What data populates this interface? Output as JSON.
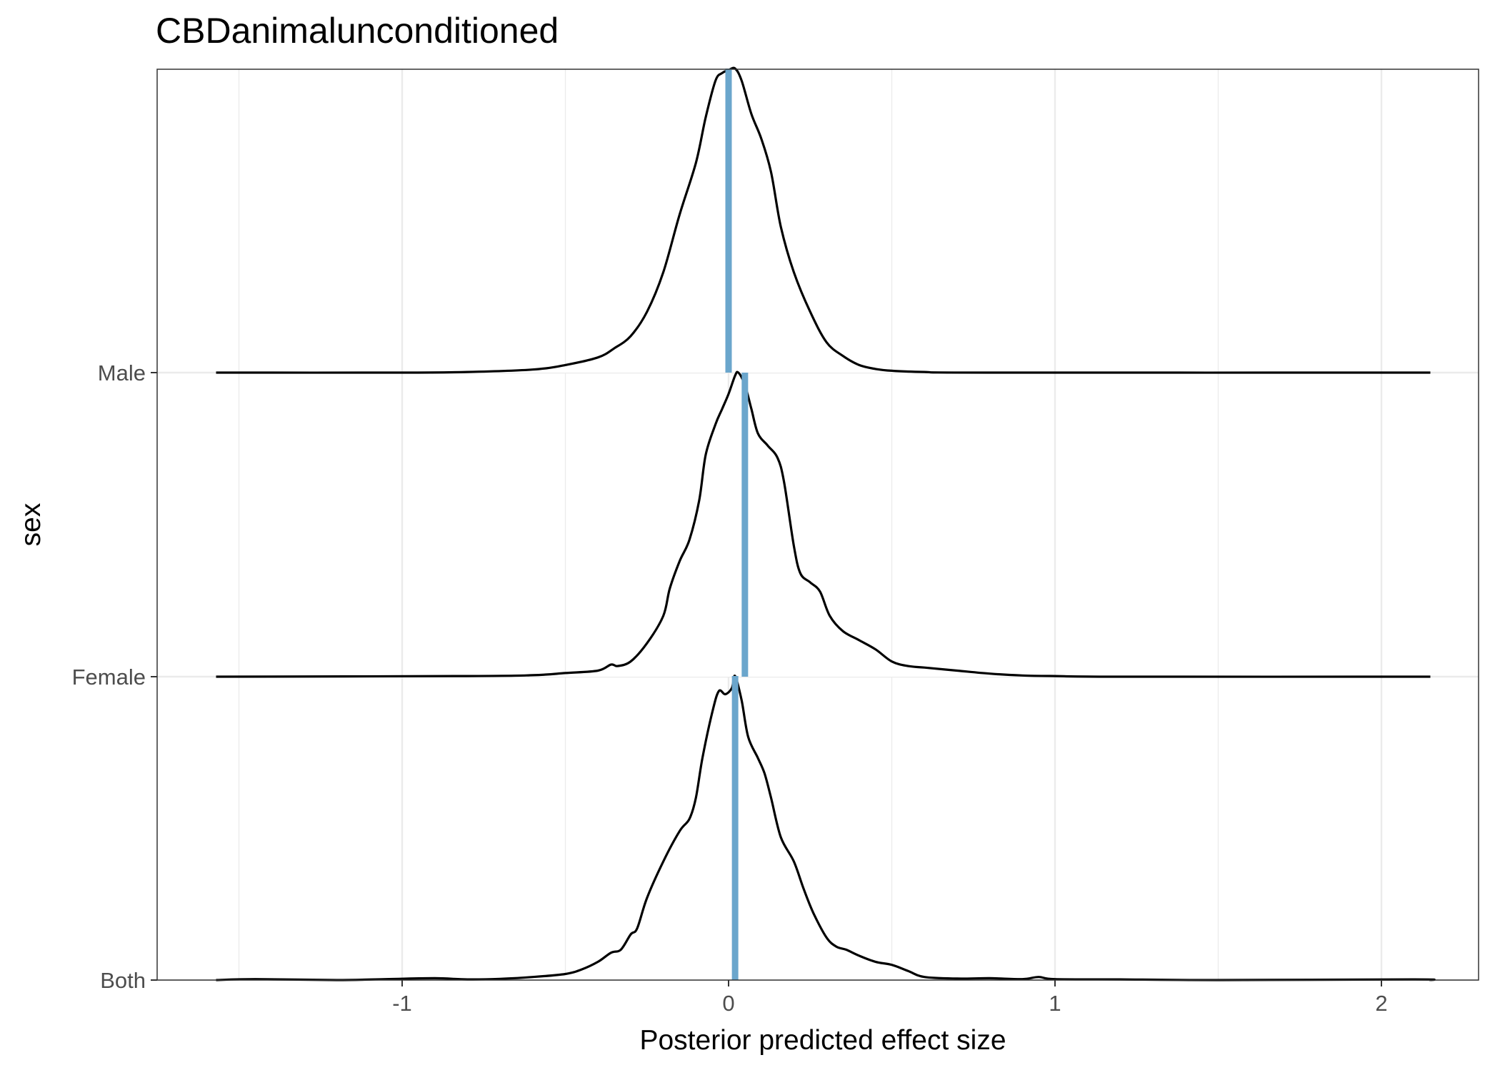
{
  "chart_data": {
    "type": "ridgeline-density",
    "title": "CBDanimalunconditioned",
    "xlabel": "Posterior predicted effect size",
    "ylabel": "sex",
    "xlim": [
      -1.75,
      2.3
    ],
    "x_ticks": [
      -1,
      0,
      1,
      2
    ],
    "x_tick_labels": [
      "-1",
      "0",
      "1",
      "2"
    ],
    "categories": [
      "Both",
      "Female",
      "Male"
    ],
    "grid": true,
    "density_range": [
      -1.57,
      2.15
    ],
    "series": [
      {
        "name": "Male",
        "mean_line": 0.0,
        "density": [
          [
            -1.57,
            0.0
          ],
          [
            -1.0,
            0.0
          ],
          [
            -0.8,
            0.002
          ],
          [
            -0.6,
            0.01
          ],
          [
            -0.5,
            0.025
          ],
          [
            -0.4,
            0.05
          ],
          [
            -0.35,
            0.08
          ],
          [
            -0.3,
            0.12
          ],
          [
            -0.25,
            0.2
          ],
          [
            -0.2,
            0.33
          ],
          [
            -0.15,
            0.52
          ],
          [
            -0.1,
            0.69
          ],
          [
            -0.07,
            0.84
          ],
          [
            -0.04,
            0.96
          ],
          [
            -0.02,
            0.985
          ],
          [
            0.0,
            0.995
          ],
          [
            0.02,
            1.0
          ],
          [
            0.04,
            0.96
          ],
          [
            0.07,
            0.85
          ],
          [
            0.1,
            0.77
          ],
          [
            0.13,
            0.66
          ],
          [
            0.16,
            0.48
          ],
          [
            0.2,
            0.33
          ],
          [
            0.25,
            0.2
          ],
          [
            0.3,
            0.1
          ],
          [
            0.35,
            0.055
          ],
          [
            0.4,
            0.025
          ],
          [
            0.45,
            0.012
          ],
          [
            0.5,
            0.006
          ],
          [
            0.6,
            0.002
          ],
          [
            0.8,
            0.0
          ],
          [
            2.15,
            0.0
          ]
        ]
      },
      {
        "name": "Female",
        "mean_line": 0.05,
        "density": [
          [
            -1.57,
            0.0
          ],
          [
            -0.8,
            0.002
          ],
          [
            -0.6,
            0.005
          ],
          [
            -0.5,
            0.012
          ],
          [
            -0.4,
            0.02
          ],
          [
            -0.36,
            0.04
          ],
          [
            -0.34,
            0.035
          ],
          [
            -0.3,
            0.05
          ],
          [
            -0.25,
            0.11
          ],
          [
            -0.2,
            0.2
          ],
          [
            -0.18,
            0.29
          ],
          [
            -0.15,
            0.38
          ],
          [
            -0.12,
            0.45
          ],
          [
            -0.09,
            0.58
          ],
          [
            -0.07,
            0.73
          ],
          [
            -0.04,
            0.83
          ],
          [
            -0.02,
            0.88
          ],
          [
            0.0,
            0.93
          ],
          [
            0.02,
            0.99
          ],
          [
            0.03,
            1.0
          ],
          [
            0.05,
            0.96
          ],
          [
            0.07,
            0.88
          ],
          [
            0.09,
            0.8
          ],
          [
            0.12,
            0.76
          ],
          [
            0.15,
            0.72
          ],
          [
            0.17,
            0.64
          ],
          [
            0.2,
            0.43
          ],
          [
            0.22,
            0.34
          ],
          [
            0.25,
            0.31
          ],
          [
            0.28,
            0.28
          ],
          [
            0.31,
            0.2
          ],
          [
            0.35,
            0.15
          ],
          [
            0.4,
            0.12
          ],
          [
            0.45,
            0.09
          ],
          [
            0.5,
            0.05
          ],
          [
            0.55,
            0.035
          ],
          [
            0.6,
            0.03
          ],
          [
            0.7,
            0.02
          ],
          [
            0.8,
            0.01
          ],
          [
            0.9,
            0.004
          ],
          [
            1.0,
            0.002
          ],
          [
            1.2,
            0.0
          ],
          [
            2.15,
            0.0
          ]
        ]
      },
      {
        "name": "Both",
        "mean_line": 0.02,
        "density": [
          [
            -1.57,
            0.0
          ],
          [
            -1.45,
            0.003
          ],
          [
            -1.2,
            0.0
          ],
          [
            -1.05,
            0.003
          ],
          [
            -0.9,
            0.006
          ],
          [
            -0.8,
            0.002
          ],
          [
            -0.7,
            0.004
          ],
          [
            -0.6,
            0.01
          ],
          [
            -0.5,
            0.02
          ],
          [
            -0.45,
            0.035
          ],
          [
            -0.4,
            0.06
          ],
          [
            -0.36,
            0.09
          ],
          [
            -0.33,
            0.1
          ],
          [
            -0.3,
            0.15
          ],
          [
            -0.28,
            0.17
          ],
          [
            -0.25,
            0.27
          ],
          [
            -0.2,
            0.39
          ],
          [
            -0.15,
            0.49
          ],
          [
            -0.12,
            0.53
          ],
          [
            -0.1,
            0.6
          ],
          [
            -0.08,
            0.73
          ],
          [
            -0.05,
            0.88
          ],
          [
            -0.03,
            0.95
          ],
          [
            -0.01,
            0.94
          ],
          [
            0.01,
            0.96
          ],
          [
            0.02,
            1.0
          ],
          [
            0.04,
            0.92
          ],
          [
            0.06,
            0.8
          ],
          [
            0.09,
            0.73
          ],
          [
            0.11,
            0.68
          ],
          [
            0.13,
            0.6
          ],
          [
            0.16,
            0.47
          ],
          [
            0.2,
            0.39
          ],
          [
            0.23,
            0.3
          ],
          [
            0.26,
            0.22
          ],
          [
            0.3,
            0.14
          ],
          [
            0.33,
            0.11
          ],
          [
            0.36,
            0.1
          ],
          [
            0.4,
            0.08
          ],
          [
            0.45,
            0.06
          ],
          [
            0.5,
            0.05
          ],
          [
            0.55,
            0.03
          ],
          [
            0.6,
            0.01
          ],
          [
            0.7,
            0.005
          ],
          [
            0.8,
            0.006
          ],
          [
            0.9,
            0.003
          ],
          [
            0.95,
            0.01
          ],
          [
            1.0,
            0.003
          ],
          [
            1.2,
            0.002
          ],
          [
            1.5,
            0.0
          ],
          [
            2.1,
            0.002
          ],
          [
            2.15,
            0.0
          ]
        ]
      }
    ],
    "colors": {
      "curve": "#000000",
      "mean_line": "#6ba6cc",
      "grid": "#ebebeb",
      "panel_border": "#333333"
    }
  }
}
